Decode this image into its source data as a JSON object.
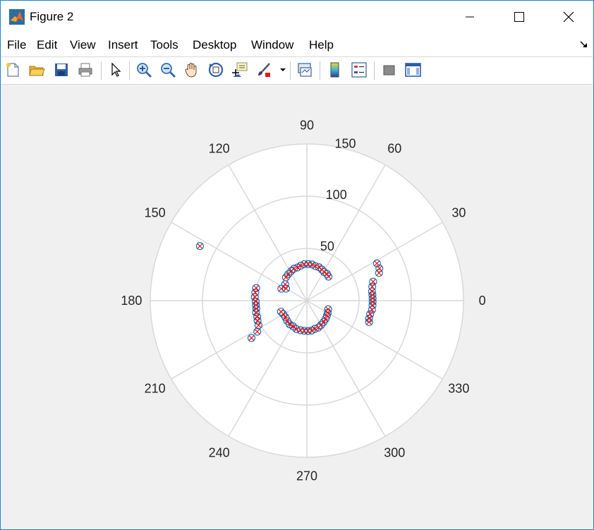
{
  "window": {
    "title": "Figure 2"
  },
  "menu": [
    "File",
    "Edit",
    "View",
    "Insert",
    "Tools",
    "Desktop",
    "Window",
    "Help"
  ],
  "toolbar_icons": [
    "new-figure-icon",
    "open-file-icon",
    "save-icon",
    "print-icon",
    "edit-plot-icon",
    "zoom-in-icon",
    "zoom-out-icon",
    "pan-icon",
    "rotate-3d-icon",
    "data-cursor-icon",
    "brush-icon",
    "brush-dropdown-icon",
    "link-plot-icon",
    "insert-colorbar-icon",
    "insert-legend-icon",
    "hide-plot-tools-icon",
    "show-plot-tools-icon"
  ],
  "colors": {
    "circle_marker": "#0072bd",
    "cross_marker": "#ff0000",
    "grid": "#d9d9d9",
    "plot_background": "#ffffff",
    "figure_background": "#f0f0f0"
  },
  "chart_data": {
    "type": "scatter",
    "coordinate_system": "polar",
    "theta_unit": "degrees",
    "theta_ticks": [
      "0",
      "30",
      "60",
      "90",
      "120",
      "150",
      "180",
      "210",
      "240",
      "270",
      "300",
      "330"
    ],
    "r_ticks": [
      "50",
      "100",
      "150"
    ],
    "r_lim": [
      0,
      150
    ],
    "grid": true,
    "series": [
      {
        "marker": "o",
        "points": [
          {
            "theta": 132,
            "r": 30
          },
          {
            "theta": 125,
            "r": 31
          },
          {
            "theta": 118,
            "r": 32
          },
          {
            "theta": 112,
            "r": 33
          },
          {
            "theta": 106,
            "r": 33
          },
          {
            "theta": 100,
            "r": 34
          },
          {
            "theta": 94,
            "r": 35
          },
          {
            "theta": 88,
            "r": 35
          },
          {
            "theta": 82,
            "r": 35
          },
          {
            "theta": 76,
            "r": 34
          },
          {
            "theta": 70,
            "r": 34
          },
          {
            "theta": 64,
            "r": 33
          },
          {
            "theta": 59,
            "r": 32
          },
          {
            "theta": 53,
            "r": 32
          },
          {
            "theta": 48,
            "r": 31
          },
          {
            "theta": 150,
            "r": 23
          },
          {
            "theta": 143,
            "r": 26
          },
          {
            "theta": 155,
            "r": 27
          },
          {
            "theta": 153,
            "r": 115
          },
          {
            "theta": 28,
            "r": 76
          },
          {
            "theta": 24,
            "r": 76
          },
          {
            "theta": 21,
            "r": 74
          },
          {
            "theta": 16,
            "r": 66
          },
          {
            "theta": 12,
            "r": 64
          },
          {
            "theta": 8,
            "r": 63
          },
          {
            "theta": 5,
            "r": 63
          },
          {
            "theta": 2,
            "r": 63
          },
          {
            "theta": 359,
            "r": 63
          },
          {
            "theta": 356,
            "r": 63
          },
          {
            "theta": 352,
            "r": 63
          },
          {
            "theta": 348,
            "r": 62
          },
          {
            "theta": 344,
            "r": 62
          },
          {
            "theta": 341,
            "r": 63
          },
          {
            "theta": 166,
            "r": 50
          },
          {
            "theta": 171,
            "r": 50
          },
          {
            "theta": 176,
            "r": 50
          },
          {
            "theta": 181,
            "r": 49
          },
          {
            "theta": 185,
            "r": 49
          },
          {
            "theta": 189,
            "r": 49
          },
          {
            "theta": 193,
            "r": 50
          },
          {
            "theta": 198,
            "r": 50
          },
          {
            "theta": 202,
            "r": 51
          },
          {
            "theta": 207,
            "r": 52
          },
          {
            "theta": 212,
            "r": 56
          },
          {
            "theta": 214,
            "r": 64
          },
          {
            "theta": 203,
            "r": 27
          },
          {
            "theta": 210,
            "r": 26
          },
          {
            "theta": 218,
            "r": 26
          },
          {
            "theta": 226,
            "r": 27
          },
          {
            "theta": 234,
            "r": 28
          },
          {
            "theta": 242,
            "r": 28
          },
          {
            "theta": 250,
            "r": 29
          },
          {
            "theta": 258,
            "r": 29
          },
          {
            "theta": 265,
            "r": 29
          },
          {
            "theta": 272,
            "r": 29
          },
          {
            "theta": 279,
            "r": 29
          },
          {
            "theta": 286,
            "r": 28
          },
          {
            "theta": 293,
            "r": 28
          },
          {
            "theta": 300,
            "r": 27
          },
          {
            "theta": 308,
            "r": 26
          },
          {
            "theta": 316,
            "r": 25
          },
          {
            "theta": 323,
            "r": 24
          },
          {
            "theta": 330,
            "r": 23
          },
          {
            "theta": 338,
            "r": 22
          }
        ]
      },
      {
        "marker": "x",
        "points": [
          {
            "theta": 132,
            "r": 30
          },
          {
            "theta": 125,
            "r": 31
          },
          {
            "theta": 118,
            "r": 32
          },
          {
            "theta": 112,
            "r": 33
          },
          {
            "theta": 106,
            "r": 33
          },
          {
            "theta": 100,
            "r": 34
          },
          {
            "theta": 94,
            "r": 35
          },
          {
            "theta": 88,
            "r": 35
          },
          {
            "theta": 82,
            "r": 35
          },
          {
            "theta": 76,
            "r": 34
          },
          {
            "theta": 70,
            "r": 34
          },
          {
            "theta": 64,
            "r": 33
          },
          {
            "theta": 59,
            "r": 32
          },
          {
            "theta": 53,
            "r": 32
          },
          {
            "theta": 48,
            "r": 31
          },
          {
            "theta": 150,
            "r": 23
          },
          {
            "theta": 143,
            "r": 26
          },
          {
            "theta": 155,
            "r": 27
          },
          {
            "theta": 153,
            "r": 115
          },
          {
            "theta": 28,
            "r": 76
          },
          {
            "theta": 24,
            "r": 76
          },
          {
            "theta": 21,
            "r": 74
          },
          {
            "theta": 16,
            "r": 66
          },
          {
            "theta": 12,
            "r": 64
          },
          {
            "theta": 8,
            "r": 63
          },
          {
            "theta": 5,
            "r": 63
          },
          {
            "theta": 2,
            "r": 63
          },
          {
            "theta": 359,
            "r": 63
          },
          {
            "theta": 356,
            "r": 63
          },
          {
            "theta": 352,
            "r": 63
          },
          {
            "theta": 348,
            "r": 62
          },
          {
            "theta": 344,
            "r": 62
          },
          {
            "theta": 341,
            "r": 63
          },
          {
            "theta": 166,
            "r": 50
          },
          {
            "theta": 171,
            "r": 50
          },
          {
            "theta": 176,
            "r": 50
          },
          {
            "theta": 181,
            "r": 49
          },
          {
            "theta": 185,
            "r": 49
          },
          {
            "theta": 189,
            "r": 49
          },
          {
            "theta": 193,
            "r": 50
          },
          {
            "theta": 198,
            "r": 50
          },
          {
            "theta": 202,
            "r": 51
          },
          {
            "theta": 207,
            "r": 52
          },
          {
            "theta": 212,
            "r": 56
          },
          {
            "theta": 214,
            "r": 64
          },
          {
            "theta": 203,
            "r": 27
          },
          {
            "theta": 210,
            "r": 26
          },
          {
            "theta": 218,
            "r": 26
          },
          {
            "theta": 226,
            "r": 27
          },
          {
            "theta": 234,
            "r": 28
          },
          {
            "theta": 242,
            "r": 28
          },
          {
            "theta": 250,
            "r": 29
          },
          {
            "theta": 258,
            "r": 29
          },
          {
            "theta": 265,
            "r": 29
          },
          {
            "theta": 272,
            "r": 29
          },
          {
            "theta": 279,
            "r": 29
          },
          {
            "theta": 286,
            "r": 28
          },
          {
            "theta": 293,
            "r": 28
          },
          {
            "theta": 300,
            "r": 27
          },
          {
            "theta": 308,
            "r": 26
          },
          {
            "theta": 316,
            "r": 25
          },
          {
            "theta": 323,
            "r": 24
          },
          {
            "theta": 330,
            "r": 23
          },
          {
            "theta": 338,
            "r": 22
          }
        ]
      }
    ]
  }
}
